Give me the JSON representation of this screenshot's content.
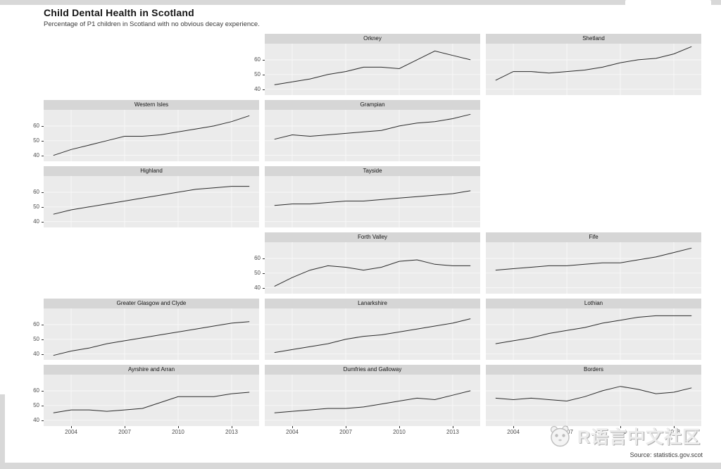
{
  "page": {
    "bg": "#ffffff",
    "edge_color": "#d8d8d8"
  },
  "chart_data": {
    "type": "line",
    "title": "Child Dental Health in Scotland",
    "subtitle": "Percentage of P1 children in Scotland with no obvious decay experience.",
    "caption": "Source: statistics.gov.scot",
    "legend": "none",
    "layout": "geofacet grid of Scotland NHS boards, 3 columns x 6 rows, shared axes",
    "x": [
      2003,
      2004,
      2005,
      2006,
      2007,
      2008,
      2009,
      2010,
      2011,
      2012,
      2013,
      2014
    ],
    "x_ticks": [
      2004,
      2007,
      2010,
      2013
    ],
    "y_ticks": [
      60,
      50,
      40
    ],
    "ylim": [
      36,
      71
    ],
    "xlabel": "",
    "ylabel": "",
    "panels": [
      {
        "name": "Orkney",
        "row": 1,
        "col": 2,
        "values": [
          43,
          45,
          47,
          50,
          52,
          55,
          55,
          54,
          60,
          66,
          63,
          60
        ]
      },
      {
        "name": "Shetland",
        "row": 1,
        "col": 3,
        "values": [
          46,
          52,
          52,
          51,
          52,
          53,
          55,
          58,
          60,
          61,
          64,
          69
        ]
      },
      {
        "name": "Western Isles",
        "row": 2,
        "col": 1,
        "values": [
          40,
          44,
          47,
          50,
          53,
          53,
          54,
          56,
          58,
          60,
          63,
          67
        ]
      },
      {
        "name": "Grampian",
        "row": 2,
        "col": 2,
        "values": [
          51,
          54,
          53,
          54,
          55,
          56,
          57,
          60,
          62,
          63,
          65,
          68
        ]
      },
      {
        "name": "Highland",
        "row": 3,
        "col": 1,
        "values": [
          45,
          48,
          50,
          52,
          54,
          56,
          58,
          60,
          62,
          63,
          64,
          64
        ]
      },
      {
        "name": "Tayside",
        "row": 3,
        "col": 2,
        "values": [
          51,
          52,
          52,
          53,
          54,
          54,
          55,
          56,
          57,
          58,
          59,
          61
        ]
      },
      {
        "name": "Forth Valley",
        "row": 4,
        "col": 2,
        "values": [
          41,
          47,
          52,
          55,
          54,
          52,
          54,
          58,
          59,
          56,
          55,
          55
        ]
      },
      {
        "name": "Fife",
        "row": 4,
        "col": 3,
        "values": [
          52,
          53,
          54,
          55,
          55,
          56,
          57,
          57,
          59,
          61,
          64,
          67
        ]
      },
      {
        "name": "Greater Glasgow and Clyde",
        "row": 5,
        "col": 1,
        "values": [
          39,
          42,
          44,
          47,
          49,
          51,
          53,
          55,
          57,
          59,
          61,
          62
        ]
      },
      {
        "name": "Lanarkshire",
        "row": 5,
        "col": 2,
        "values": [
          41,
          43,
          45,
          47,
          50,
          52,
          53,
          55,
          57,
          59,
          61,
          64
        ]
      },
      {
        "name": "Lothian",
        "row": 5,
        "col": 3,
        "values": [
          47,
          49,
          51,
          54,
          56,
          58,
          61,
          63,
          65,
          66,
          66,
          66
        ]
      },
      {
        "name": "Ayrshire and Arran",
        "row": 6,
        "col": 1,
        "values": [
          45,
          47,
          47,
          46,
          47,
          48,
          52,
          56,
          56,
          56,
          58,
          59
        ]
      },
      {
        "name": "Dumfries and Galloway",
        "row": 6,
        "col": 2,
        "values": [
          45,
          46,
          47,
          48,
          48,
          49,
          51,
          53,
          55,
          54,
          57,
          60
        ]
      },
      {
        "name": "Borders",
        "row": 6,
        "col": 3,
        "values": [
          55,
          54,
          55,
          54,
          53,
          56,
          60,
          63,
          61,
          58,
          59,
          62
        ]
      }
    ]
  },
  "style": {
    "strip_bg": "#d6d6d6",
    "panel_bg": "#ebebeb",
    "gridline_color": "#f8f8f8",
    "line_color": "#2a2a2a",
    "axis_text_color": "#4d4d4d"
  },
  "watermark": {
    "text": "R语言中文社区",
    "logo": "panda-logo"
  }
}
